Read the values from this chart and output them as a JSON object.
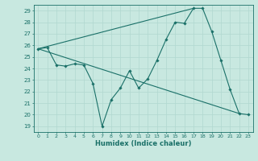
{
  "xlabel": "Humidex (Indice chaleur)",
  "bg_color": "#c8e8e0",
  "grid_color": "#b0d8d0",
  "line_color": "#1a7068",
  "xlim": [
    -0.5,
    23.5
  ],
  "ylim": [
    18.5,
    29.5
  ],
  "yticks": [
    19,
    20,
    21,
    22,
    23,
    24,
    25,
    26,
    27,
    28,
    29
  ],
  "xticks": [
    0,
    1,
    2,
    3,
    4,
    5,
    6,
    7,
    8,
    9,
    10,
    11,
    12,
    13,
    14,
    15,
    16,
    17,
    18,
    19,
    20,
    21,
    22,
    23
  ],
  "series1_x": [
    0,
    1,
    2,
    3,
    4,
    5,
    6,
    7,
    8,
    9,
    10,
    11,
    12,
    13,
    14,
    15,
    16,
    17,
    18,
    19,
    20,
    21,
    22,
    23
  ],
  "series1_y": [
    25.7,
    25.8,
    24.3,
    24.2,
    24.4,
    24.3,
    22.7,
    19.0,
    21.3,
    22.3,
    23.8,
    22.3,
    23.1,
    24.7,
    26.5,
    28.0,
    27.9,
    29.2,
    29.2,
    27.2,
    24.7,
    22.2,
    20.1,
    20.0
  ],
  "series2_x": [
    0,
    22
  ],
  "series2_y": [
    25.7,
    20.1
  ],
  "series3_x": [
    0,
    17
  ],
  "series3_y": [
    25.7,
    29.2
  ]
}
